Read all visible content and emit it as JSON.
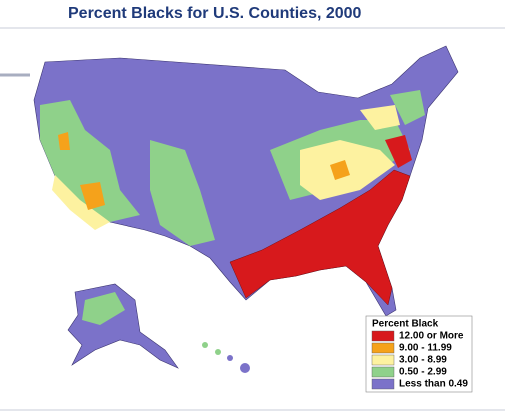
{
  "header": {
    "title": "Percent Blacks for U.S. Counties, 2000"
  },
  "legend": {
    "title": "Percent Black",
    "items": [
      {
        "label": "12.00 or More",
        "color": "#d7191c"
      },
      {
        "label": "9.00 - 11.99",
        "color": "#f5a21b"
      },
      {
        "label": "3.00 - 8.99",
        "color": "#fdf2a0"
      },
      {
        "label": "0.50 - 2.99",
        "color": "#8fd18a"
      },
      {
        "label": "Less than 0.49",
        "color": "#7b72c9"
      }
    ]
  }
}
